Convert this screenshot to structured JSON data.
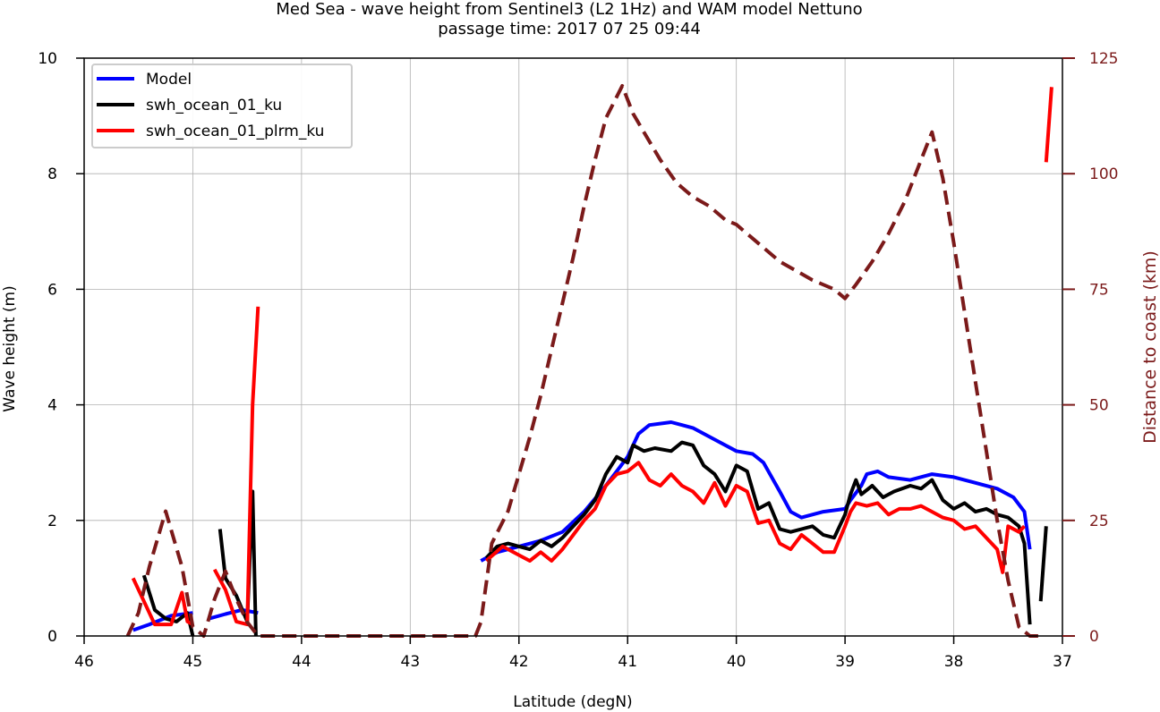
{
  "chart_data": {
    "type": "line",
    "title_line1": "Med Sea - wave height from Sentinel3 (L2 1Hz) and WAM model Nettuno",
    "title_line2": "passage time: 2017 07 25 09:44",
    "xlabel": "Latitude (degN)",
    "ylabel": "Wave height (m)",
    "ylabel_right": "Distance to coast (km)",
    "xlim": [
      46,
      37
    ],
    "ylim": [
      0,
      10
    ],
    "ylim_right": [
      0,
      125
    ],
    "x_ticks": [
      46,
      45,
      44,
      43,
      42,
      41,
      40,
      39,
      38,
      37
    ],
    "y_ticks": [
      0,
      2,
      4,
      6,
      8,
      10
    ],
    "y_ticks_right": [
      0,
      25,
      50,
      75,
      100,
      125
    ],
    "grid": true,
    "legend_position": "top-left",
    "legend": [
      {
        "label": "Model",
        "color": "#0000ff"
      },
      {
        "label": "swh_ocean_01_ku",
        "color": "#000000"
      },
      {
        "label": "swh_ocean_01_plrm_ku",
        "color": "#ff0000"
      }
    ],
    "series": [
      {
        "name": "Model",
        "axis": "left",
        "color": "#0000ff",
        "style": "dashed-solid",
        "segments": [
          [
            [
              45.55,
              0.1
            ],
            [
              45.4,
              0.2
            ],
            [
              45.2,
              0.35
            ],
            [
              45.0,
              0.4
            ]
          ],
          [
            [
              44.85,
              0.3
            ],
            [
              44.7,
              0.38
            ],
            [
              44.55,
              0.45
            ],
            [
              44.4,
              0.4
            ]
          ],
          [
            [
              42.35,
              1.3
            ],
            [
              42.2,
              1.45
            ],
            [
              42.0,
              1.55
            ],
            [
              41.8,
              1.65
            ],
            [
              41.6,
              1.8
            ],
            [
              41.4,
              2.15
            ],
            [
              41.2,
              2.6
            ],
            [
              41.0,
              3.1
            ],
            [
              40.9,
              3.5
            ],
            [
              40.8,
              3.65
            ],
            [
              40.6,
              3.7
            ],
            [
              40.4,
              3.6
            ],
            [
              40.2,
              3.4
            ],
            [
              40.0,
              3.2
            ],
            [
              39.85,
              3.15
            ],
            [
              39.75,
              3.0
            ],
            [
              39.6,
              2.5
            ],
            [
              39.5,
              2.15
            ],
            [
              39.4,
              2.05
            ],
            [
              39.2,
              2.15
            ],
            [
              39.0,
              2.2
            ],
            [
              38.95,
              2.35
            ],
            [
              38.85,
              2.6
            ],
            [
              38.8,
              2.8
            ],
            [
              38.7,
              2.85
            ],
            [
              38.6,
              2.75
            ],
            [
              38.4,
              2.7
            ],
            [
              38.2,
              2.8
            ],
            [
              38.0,
              2.75
            ],
            [
              37.8,
              2.65
            ],
            [
              37.6,
              2.55
            ],
            [
              37.45,
              2.4
            ],
            [
              37.35,
              2.15
            ],
            [
              37.3,
              1.5
            ]
          ]
        ]
      },
      {
        "name": "swh_ocean_01_ku",
        "axis": "left",
        "color": "#000000",
        "segments": [
          [
            [
              45.45,
              1.05
            ],
            [
              45.35,
              0.45
            ],
            [
              45.25,
              0.3
            ],
            [
              45.15,
              0.25
            ],
            [
              45.05,
              0.4
            ],
            [
              45.0,
              0.0
            ]
          ],
          [
            [
              44.75,
              1.85
            ],
            [
              44.7,
              1.0
            ],
            [
              44.6,
              0.7
            ],
            [
              44.5,
              0.25
            ],
            [
              44.45,
              2.5
            ],
            [
              44.42,
              0.0
            ]
          ],
          [
            [
              42.3,
              1.35
            ],
            [
              42.2,
              1.55
            ],
            [
              42.1,
              1.6
            ],
            [
              42.0,
              1.55
            ],
            [
              41.9,
              1.5
            ],
            [
              41.8,
              1.65
            ],
            [
              41.7,
              1.55
            ],
            [
              41.6,
              1.7
            ],
            [
              41.5,
              1.9
            ],
            [
              41.4,
              2.1
            ],
            [
              41.3,
              2.35
            ],
            [
              41.2,
              2.8
            ],
            [
              41.1,
              3.1
            ],
            [
              41.0,
              3.0
            ],
            [
              40.95,
              3.3
            ],
            [
              40.85,
              3.2
            ],
            [
              40.75,
              3.25
            ],
            [
              40.6,
              3.2
            ],
            [
              40.5,
              3.35
            ],
            [
              40.4,
              3.3
            ],
            [
              40.3,
              2.95
            ],
            [
              40.2,
              2.8
            ],
            [
              40.1,
              2.5
            ],
            [
              40.0,
              2.95
            ],
            [
              39.9,
              2.85
            ],
            [
              39.8,
              2.2
            ],
            [
              39.7,
              2.3
            ],
            [
              39.6,
              1.85
            ],
            [
              39.5,
              1.8
            ],
            [
              39.4,
              1.85
            ],
            [
              39.3,
              1.9
            ],
            [
              39.2,
              1.75
            ],
            [
              39.1,
              1.7
            ],
            [
              39.0,
              2.1
            ],
            [
              38.95,
              2.45
            ],
            [
              38.9,
              2.7
            ],
            [
              38.85,
              2.45
            ],
            [
              38.75,
              2.6
            ],
            [
              38.65,
              2.4
            ],
            [
              38.55,
              2.5
            ],
            [
              38.4,
              2.6
            ],
            [
              38.3,
              2.55
            ],
            [
              38.2,
              2.7
            ],
            [
              38.1,
              2.35
            ],
            [
              38.0,
              2.2
            ],
            [
              37.9,
              2.3
            ],
            [
              37.8,
              2.15
            ],
            [
              37.7,
              2.2
            ],
            [
              37.6,
              2.1
            ],
            [
              37.5,
              2.05
            ],
            [
              37.4,
              1.9
            ],
            [
              37.35,
              1.6
            ],
            [
              37.3,
              0.2
            ]
          ],
          [
            [
              37.2,
              0.6
            ],
            [
              37.15,
              1.9
            ]
          ]
        ]
      },
      {
        "name": "swh_ocean_01_plrm_ku",
        "axis": "left",
        "color": "#ff0000",
        "segments": [
          [
            [
              45.55,
              1.0
            ],
            [
              45.45,
              0.6
            ],
            [
              45.35,
              0.2
            ],
            [
              45.2,
              0.2
            ],
            [
              45.1,
              0.75
            ],
            [
              45.05,
              0.25
            ],
            [
              45.0,
              0.2
            ]
          ],
          [
            [
              44.8,
              1.15
            ],
            [
              44.7,
              0.8
            ],
            [
              44.6,
              0.25
            ],
            [
              44.5,
              0.2
            ],
            [
              44.45,
              4.0
            ],
            [
              44.4,
              5.7
            ]
          ],
          [
            [
              42.3,
              1.3
            ],
            [
              42.15,
              1.55
            ],
            [
              42.0,
              1.4
            ],
            [
              41.9,
              1.3
            ],
            [
              41.8,
              1.45
            ],
            [
              41.7,
              1.3
            ],
            [
              41.6,
              1.5
            ],
            [
              41.5,
              1.75
            ],
            [
              41.4,
              2.0
            ],
            [
              41.3,
              2.2
            ],
            [
              41.2,
              2.6
            ],
            [
              41.1,
              2.8
            ],
            [
              41.0,
              2.85
            ],
            [
              40.9,
              3.0
            ],
            [
              40.8,
              2.7
            ],
            [
              40.7,
              2.6
            ],
            [
              40.6,
              2.8
            ],
            [
              40.5,
              2.6
            ],
            [
              40.4,
              2.5
            ],
            [
              40.3,
              2.3
            ],
            [
              40.2,
              2.65
            ],
            [
              40.1,
              2.25
            ],
            [
              40.0,
              2.6
            ],
            [
              39.9,
              2.5
            ],
            [
              39.8,
              1.95
            ],
            [
              39.7,
              2.0
            ],
            [
              39.6,
              1.6
            ],
            [
              39.5,
              1.5
            ],
            [
              39.4,
              1.75
            ],
            [
              39.3,
              1.6
            ],
            [
              39.2,
              1.45
            ],
            [
              39.1,
              1.45
            ],
            [
              39.0,
              1.9
            ],
            [
              38.95,
              2.15
            ],
            [
              38.9,
              2.3
            ],
            [
              38.8,
              2.25
            ],
            [
              38.7,
              2.3
            ],
            [
              38.6,
              2.1
            ],
            [
              38.5,
              2.2
            ],
            [
              38.4,
              2.2
            ],
            [
              38.3,
              2.25
            ],
            [
              38.2,
              2.15
            ],
            [
              38.1,
              2.05
            ],
            [
              38.0,
              2.0
            ],
            [
              37.9,
              1.85
            ],
            [
              37.8,
              1.9
            ],
            [
              37.7,
              1.7
            ],
            [
              37.6,
              1.5
            ],
            [
              37.55,
              1.1
            ],
            [
              37.5,
              1.9
            ],
            [
              37.4,
              1.8
            ],
            [
              37.35,
              1.9
            ]
          ],
          [
            [
              37.15,
              8.2
            ],
            [
              37.1,
              9.5
            ]
          ]
        ]
      },
      {
        "name": "Distance to coast",
        "axis": "right",
        "color": "#7b1a1a",
        "style": "dashed",
        "segments": [
          [
            [
              45.6,
              0
            ],
            [
              45.5,
              5
            ],
            [
              45.4,
              15
            ],
            [
              45.25,
              27
            ],
            [
              45.1,
              15
            ],
            [
              45.0,
              2
            ],
            [
              44.9,
              0
            ],
            [
              44.8,
              8
            ],
            [
              44.7,
              14
            ],
            [
              44.6,
              8
            ],
            [
              44.5,
              3
            ],
            [
              44.4,
              0
            ],
            [
              44.3,
              0
            ],
            [
              43.0,
              0
            ],
            [
              42.4,
              0
            ],
            [
              42.35,
              3
            ],
            [
              42.25,
              20
            ],
            [
              42.1,
              27
            ],
            [
              42.0,
              35
            ],
            [
              41.9,
              43
            ],
            [
              41.8,
              52
            ],
            [
              41.7,
              62
            ],
            [
              41.6,
              72
            ],
            [
              41.5,
              82
            ],
            [
              41.4,
              93
            ],
            [
              41.3,
              103
            ],
            [
              41.2,
              112
            ],
            [
              41.05,
              119
            ],
            [
              40.95,
              113
            ],
            [
              40.85,
              109
            ],
            [
              40.7,
              103
            ],
            [
              40.55,
              98
            ],
            [
              40.4,
              95
            ],
            [
              40.25,
              93
            ],
            [
              40.1,
              90
            ],
            [
              40.0,
              89
            ],
            [
              39.9,
              87
            ],
            [
              39.75,
              84
            ],
            [
              39.6,
              81
            ],
            [
              39.45,
              79
            ],
            [
              39.3,
              77
            ],
            [
              39.1,
              75
            ],
            [
              39.0,
              73
            ],
            [
              38.9,
              76
            ],
            [
              38.75,
              81
            ],
            [
              38.6,
              87
            ],
            [
              38.45,
              94
            ],
            [
              38.3,
              103
            ],
            [
              38.2,
              109
            ],
            [
              38.1,
              99
            ],
            [
              38.0,
              85
            ],
            [
              37.9,
              70
            ],
            [
              37.8,
              55
            ],
            [
              37.7,
              40
            ],
            [
              37.6,
              25
            ],
            [
              37.5,
              12
            ],
            [
              37.4,
              2
            ],
            [
              37.3,
              0
            ],
            [
              37.2,
              0
            ]
          ]
        ]
      }
    ]
  }
}
